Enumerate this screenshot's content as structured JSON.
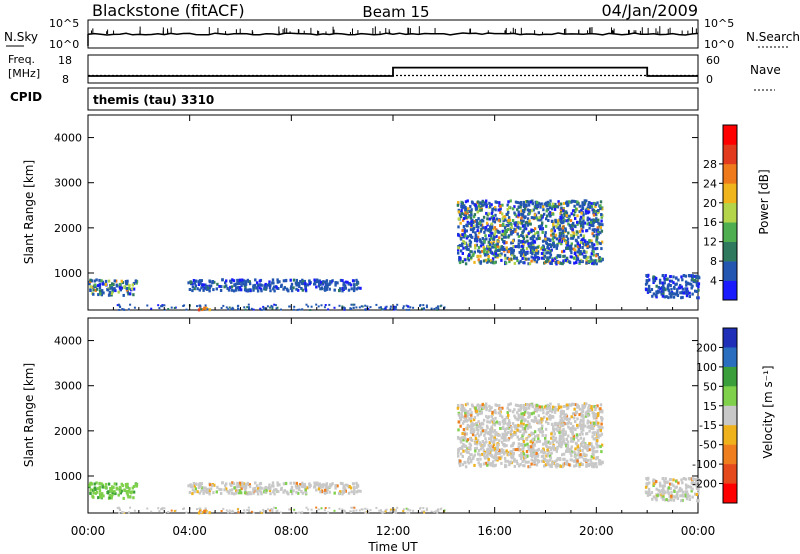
{
  "header": {
    "station": "Blackstone (fitACF)",
    "beam": "Beam 15",
    "date": "04/Jan/2009"
  },
  "noise_panel": {
    "left_label": "N.Sky",
    "left_ticks": [
      "10^5",
      "10^0"
    ],
    "right_ticks": [
      "10^5",
      "10^0"
    ],
    "right_label": "N.Search"
  },
  "freq_panel": {
    "left_label": "Freq.",
    "left_unit": "[MHz]",
    "left_ticks": [
      "18",
      "8"
    ],
    "right_ticks": [
      "60",
      "0"
    ],
    "right_label": "Nave",
    "freq_mhz": [
      {
        "t": 0,
        "v": 10.5
      },
      {
        "t": 12,
        "v": 10.5
      },
      {
        "t": 12,
        "v": 13.5
      },
      {
        "t": 22,
        "v": 13.5
      },
      {
        "t": 22,
        "v": 10.5
      },
      {
        "t": 24,
        "v": 10.5
      }
    ],
    "nave_level": 16
  },
  "cpid_panel": {
    "label": "CPID",
    "text": "themis (tau) 3310"
  },
  "power_panel": {
    "ylabel": "Slant Range [km]",
    "yticks": [
      "1000",
      "2000",
      "3000",
      "4000"
    ],
    "cbar_label": "Power [dB]",
    "cbar_ticks": [
      "4",
      "8",
      "12",
      "16",
      "20",
      "24",
      "28"
    ],
    "cbar_colors": [
      "#1a1aff",
      "#2356b0",
      "#2f7a5f",
      "#4fae4f",
      "#b4d54a",
      "#f0b51c",
      "#ee7a1c",
      "#e23a1c",
      "#ff0000"
    ]
  },
  "velocity_panel": {
    "ylabel": "Slant Range [km]",
    "yticks": [
      "1000",
      "2000",
      "3000",
      "4000"
    ],
    "cbar_label": "Velocity [m s⁻¹]",
    "cbar_ticks": [
      "200",
      "100",
      "50",
      "15",
      "-15",
      "-50",
      "-100",
      "-200"
    ],
    "cbar_colors": [
      "#1f2fb8",
      "#2a6fbf",
      "#3a9f3a",
      "#7fd04a",
      "#c8c8c8",
      "#f0b21c",
      "#ef7e1e",
      "#e54a1c",
      "#ff0000"
    ]
  },
  "xaxis": {
    "ticks": [
      "00:00",
      "04:00",
      "08:00",
      "12:00",
      "16:00",
      "20:00",
      "00:00"
    ],
    "label": "Time UT"
  },
  "chart_data": {
    "type": "heatmap",
    "x_range_hours": [
      0,
      24
    ],
    "y_range_km": [
      180,
      4500
    ],
    "scatter_regions": [
      {
        "t0": 0.0,
        "t1": 1.9,
        "r0": 500,
        "r1": 850,
        "power": "mixed",
        "velocity": "positive-low"
      },
      {
        "t0": 3.9,
        "t1": 10.8,
        "r0": 600,
        "r1": 850,
        "power": "low",
        "velocity": "near-zero"
      },
      {
        "t0": 4.3,
        "t1": 4.9,
        "r0": 180,
        "r1": 260,
        "power": "high",
        "velocity": "negative"
      },
      {
        "t0": 14.5,
        "t1": 20.2,
        "r0": 1200,
        "r1": 2600,
        "power": "mixed",
        "velocity": "near-zero"
      },
      {
        "t0": 21.9,
        "t1": 24.0,
        "r0": 450,
        "r1": 950,
        "power": "low",
        "velocity": "near-zero"
      }
    ]
  }
}
